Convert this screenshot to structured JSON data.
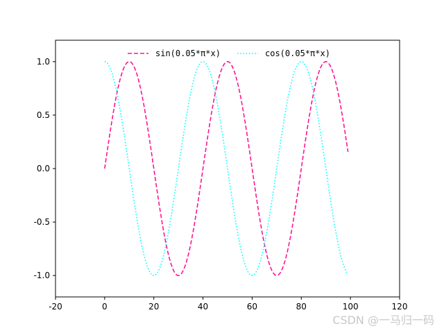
{
  "chart_data": {
    "type": "line",
    "title": "",
    "xlabel": "",
    "ylabel": "",
    "xlim": [
      -20,
      120
    ],
    "ylim": [
      -1.2,
      1.2
    ],
    "xticks": [
      -20,
      0,
      20,
      40,
      60,
      80,
      100,
      120
    ],
    "yticks": [
      -1.0,
      -0.5,
      0.0,
      0.5,
      1.0
    ],
    "xtick_labels": [
      "-20",
      "0",
      "20",
      "40",
      "60",
      "80",
      "100",
      "120"
    ],
    "ytick_labels": [
      "-1.0",
      "-0.5",
      "0.0",
      "0.5",
      "1.0"
    ],
    "legend_position": "top-center",
    "grid": false,
    "x_range": {
      "start": 0,
      "end": 99,
      "step": 1
    },
    "series": [
      {
        "name": "sin(0.05*π*x)",
        "function": "sin",
        "frequency": 0.05,
        "phase": 0,
        "color": "#ff1493",
        "style": "dashed"
      },
      {
        "name": "cos(0.05*π*x)",
        "function": "cos",
        "frequency": 0.05,
        "phase": 0,
        "color": "#00ffff",
        "style": "dotted"
      }
    ]
  },
  "watermark": "CSDN @一马归一码"
}
